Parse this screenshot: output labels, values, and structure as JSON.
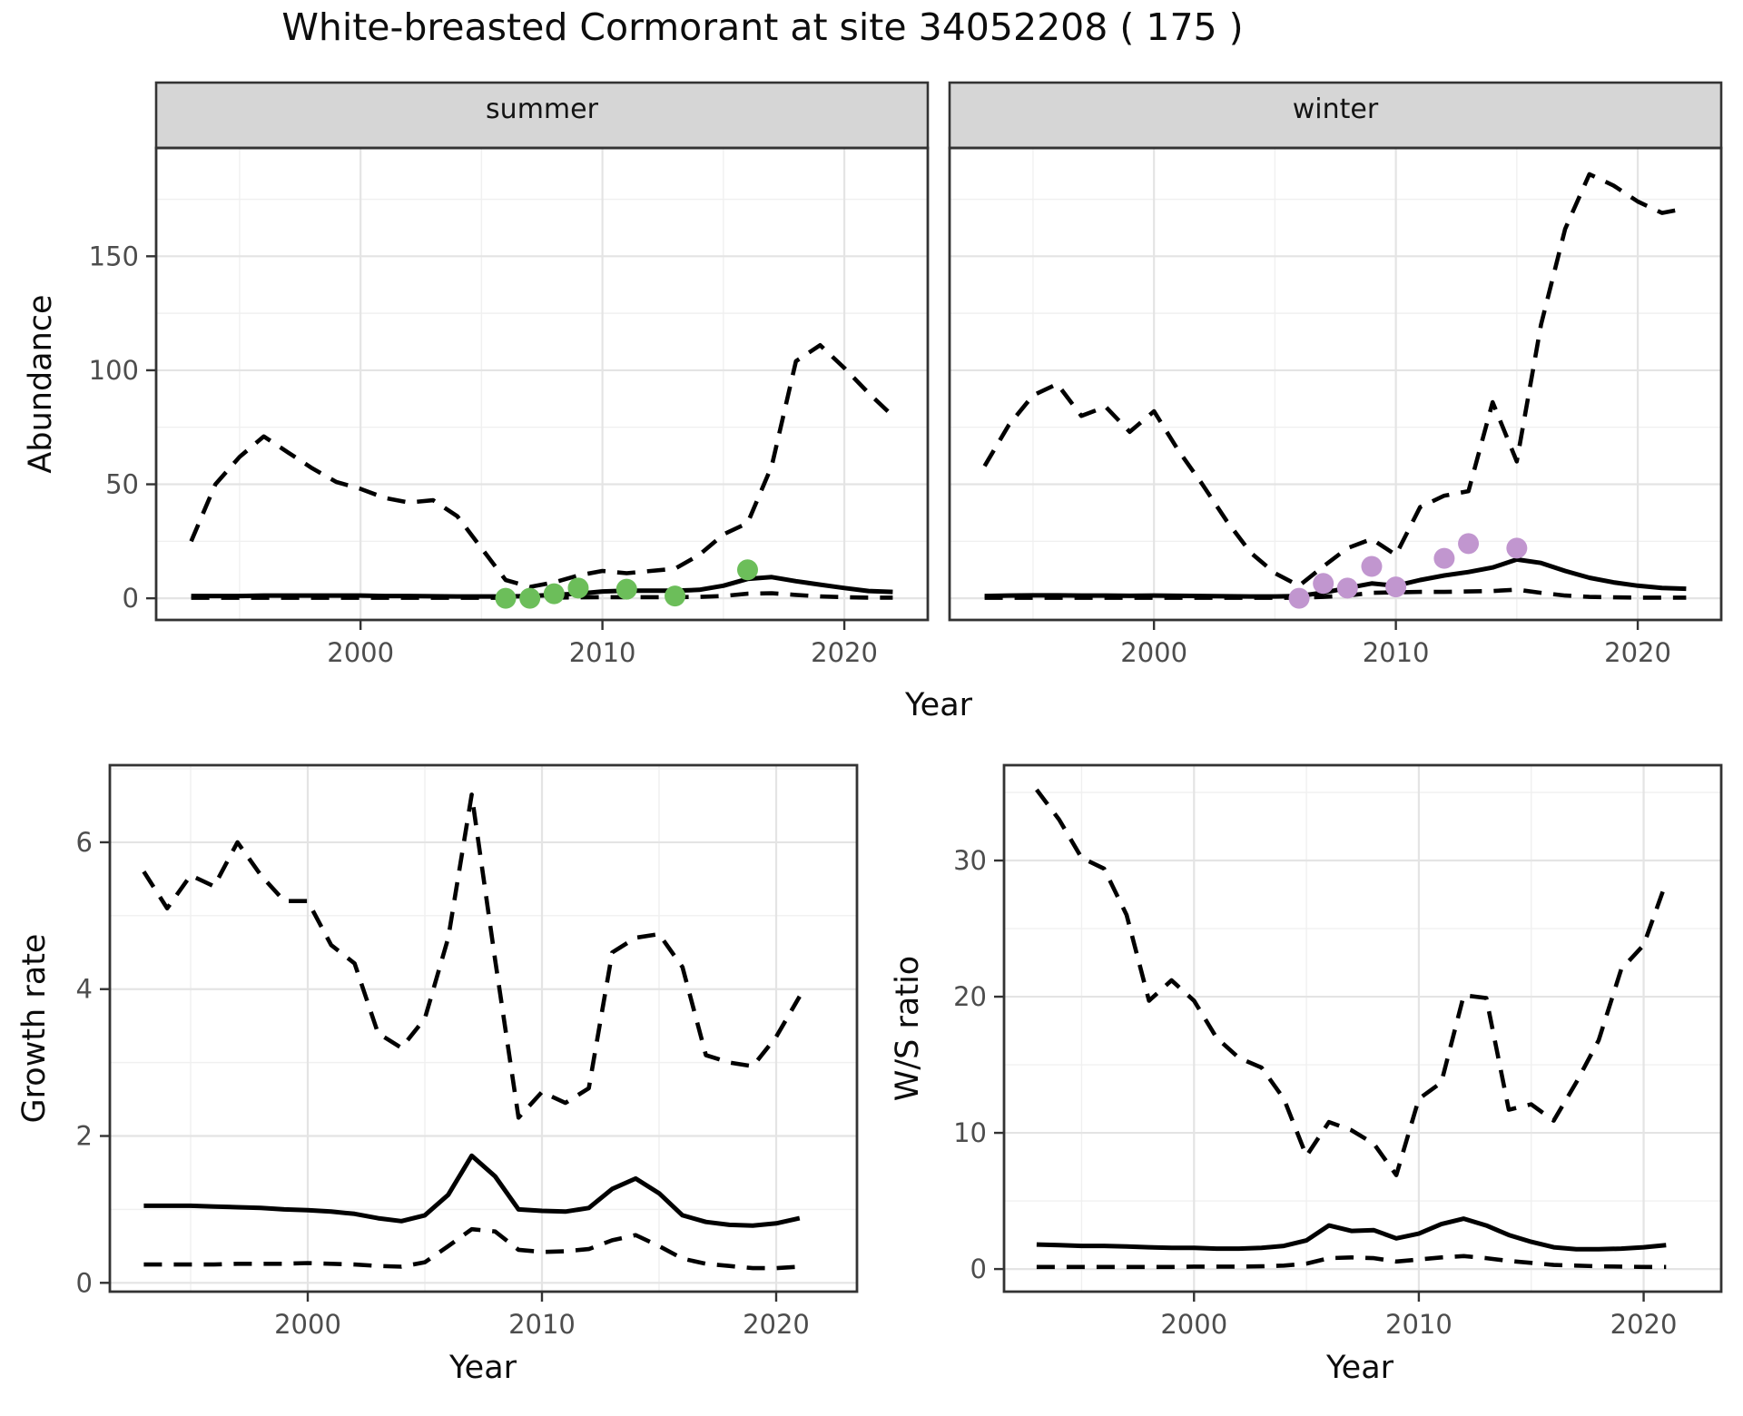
{
  "title": "White-breasted Cormorant at site 34052208 ( 175 )",
  "colors": {
    "line": "#000000",
    "summer_point": "#6cbe5a",
    "winter_point": "#c196cf",
    "grid_major": "#e4e4e4",
    "grid_minor": "#f0f0f0",
    "strip_bg": "#d6d6d6",
    "panel_border": "#333333",
    "tick_label": "#4d4d4d"
  },
  "chart_data": [
    {
      "id": "abundance",
      "type": "line",
      "x_label": "Year",
      "y_label": "Abundance",
      "x_ticks": [
        2000,
        2010,
        2020
      ],
      "x_minor_ticks": [
        1995,
        2005,
        2015
      ],
      "y_ticks": [
        0,
        50,
        100,
        150
      ],
      "y_minor_ticks": [
        25,
        75,
        125,
        175
      ],
      "xlim": [
        1991.55,
        2023.45
      ],
      "ylim": [
        -9.5,
        197.5
      ],
      "years": [
        1993,
        1994,
        1995,
        1996,
        1997,
        1998,
        1999,
        2000,
        2001,
        2002,
        2003,
        2004,
        2005,
        2006,
        2007,
        2008,
        2009,
        2010,
        2011,
        2012,
        2013,
        2014,
        2015,
        2016,
        2017,
        2018,
        2019,
        2020,
        2021,
        2022
      ],
      "facets": [
        {
          "label": "summer",
          "point_color": "#6cbe5a",
          "series": [
            {
              "name": "upper_95ci",
              "style": "dashed",
              "values": [
                25,
                50,
                62,
                71,
                64,
                57,
                51,
                48,
                44,
                42,
                43,
                36,
                22,
                8,
                5,
                7,
                10,
                12,
                11,
                12,
                13,
                19,
                28,
                33,
                58,
                104,
                111,
                101,
                90,
                80
              ]
            },
            {
              "name": "median_estimate",
              "style": "solid",
              "values": [
                1,
                1,
                1,
                1.2,
                1.2,
                1.2,
                1.2,
                1.2,
                1,
                1,
                0.9,
                0.8,
                0.8,
                0.8,
                1,
                1.5,
                2,
                3,
                3.3,
                3.3,
                3.3,
                3.7,
                5.5,
                8.5,
                9.3,
                7.5,
                6,
                4.5,
                3.2,
                2.8
              ]
            },
            {
              "name": "lower_95ci",
              "style": "dashed",
              "values": [
                0.2,
                0.2,
                0.2,
                0.2,
                0.2,
                0.2,
                0.2,
                0.2,
                0.2,
                0.2,
                0.2,
                0.2,
                0.2,
                0.2,
                0.2,
                0.3,
                0.4,
                0.5,
                0.5,
                0.5,
                0.5,
                0.6,
                1,
                2,
                2.2,
                1.5,
                0.8,
                0.5,
                0.3,
                0.3
              ]
            }
          ],
          "observed_points": [
            [
              2006,
              0
            ],
            [
              2007,
              0
            ],
            [
              2008,
              2
            ],
            [
              2009,
              4.5
            ],
            [
              2011,
              4
            ],
            [
              2013,
              1
            ],
            [
              2016,
              12.5
            ]
          ]
        },
        {
          "label": "winter",
          "point_color": "#c196cf",
          "series": [
            {
              "name": "upper_95ci",
              "style": "dashed",
              "values": [
                58,
                76,
                89,
                94,
                80,
                84,
                73,
                82,
                65,
                50,
                34,
                20,
                11,
                5.5,
                14,
                22,
                26,
                19,
                40,
                45,
                47,
                86,
                60,
                120,
                162,
                186,
                181,
                174,
                169,
                171
              ]
            },
            {
              "name": "median_estimate",
              "style": "solid",
              "values": [
                1,
                1.2,
                1.3,
                1.3,
                1.2,
                1.2,
                1.1,
                1.2,
                1.1,
                1,
                0.9,
                0.8,
                0.8,
                1,
                2.5,
                4.5,
                6.5,
                5.5,
                8,
                10,
                11.5,
                13.5,
                17,
                15.5,
                12,
                9,
                7,
                5.5,
                4.5,
                4.2
              ]
            },
            {
              "name": "lower_95ci",
              "style": "dashed",
              "values": [
                0.2,
                0.2,
                0.2,
                0.2,
                0.2,
                0.2,
                0.2,
                0.2,
                0.2,
                0.2,
                0.2,
                0.2,
                0.2,
                0.2,
                0.6,
                1.2,
                2.4,
                2.6,
                2.8,
                2.8,
                3,
                3.2,
                3.8,
                2.4,
                1.2,
                0.6,
                0.4,
                0.3,
                0.3,
                0.3
              ]
            }
          ],
          "observed_points": [
            [
              2006,
              0
            ],
            [
              2007,
              6.5
            ],
            [
              2008,
              4.5
            ],
            [
              2009,
              14
            ],
            [
              2010,
              5
            ],
            [
              2012,
              17.5
            ],
            [
              2013,
              24
            ],
            [
              2015,
              22
            ]
          ]
        }
      ]
    },
    {
      "id": "growth_rate",
      "type": "line",
      "x_label": "Year",
      "y_label": "Growth rate",
      "x_ticks": [
        2000,
        2010,
        2020
      ],
      "x_minor_ticks": [
        1995,
        2005,
        2015
      ],
      "y_ticks": [
        0,
        2,
        4,
        6
      ],
      "y_minor_ticks": [
        1,
        3,
        5,
        7
      ],
      "xlim": [
        1991.55,
        2023.45
      ],
      "ylim": [
        -0.12,
        7.05
      ],
      "years": [
        1993,
        1994,
        1995,
        1996,
        1997,
        1998,
        1999,
        2000,
        2001,
        2002,
        2003,
        2004,
        2005,
        2006,
        2007,
        2008,
        2009,
        2010,
        2011,
        2012,
        2013,
        2014,
        2015,
        2016,
        2017,
        2018,
        2019,
        2020,
        2021
      ],
      "series": [
        {
          "name": "upper_95ci",
          "style": "dashed",
          "values": [
            5.6,
            5.1,
            5.55,
            5.4,
            6.0,
            5.55,
            5.2,
            5.2,
            4.6,
            4.35,
            3.4,
            3.2,
            3.6,
            4.7,
            6.65,
            4.4,
            2.25,
            2.6,
            2.45,
            2.65,
            4.5,
            4.7,
            4.75,
            4.3,
            3.1,
            3.0,
            2.95,
            3.35,
            3.9
          ]
        },
        {
          "name": "median_estimate",
          "style": "solid",
          "values": [
            1.05,
            1.05,
            1.05,
            1.04,
            1.03,
            1.02,
            1.0,
            0.99,
            0.97,
            0.94,
            0.88,
            0.84,
            0.92,
            1.2,
            1.73,
            1.45,
            1.0,
            0.98,
            0.97,
            1.02,
            1.28,
            1.42,
            1.22,
            0.92,
            0.83,
            0.79,
            0.78,
            0.81,
            0.88
          ]
        },
        {
          "name": "lower_95ci",
          "style": "dashed",
          "values": [
            0.25,
            0.25,
            0.25,
            0.25,
            0.26,
            0.26,
            0.26,
            0.27,
            0.26,
            0.25,
            0.23,
            0.22,
            0.28,
            0.5,
            0.73,
            0.7,
            0.45,
            0.42,
            0.43,
            0.46,
            0.58,
            0.65,
            0.5,
            0.33,
            0.26,
            0.23,
            0.2,
            0.2,
            0.22
          ]
        }
      ]
    },
    {
      "id": "ws_ratio",
      "type": "line",
      "x_label": "Year",
      "y_label": "W/S ratio",
      "x_ticks": [
        2000,
        2010,
        2020
      ],
      "x_minor_ticks": [
        1995,
        2005,
        2015
      ],
      "y_ticks": [
        0,
        10,
        20,
        30
      ],
      "y_minor_ticks": [
        5,
        15,
        25,
        35
      ],
      "xlim": [
        1991.55,
        2023.45
      ],
      "ylim": [
        -1.66,
        37.0
      ],
      "years": [
        1993,
        1994,
        1995,
        1996,
        1997,
        1998,
        1999,
        2000,
        2001,
        2002,
        2003,
        2004,
        2005,
        2006,
        2007,
        2008,
        2009,
        2010,
        2011,
        2012,
        2013,
        2014,
        2015,
        2016,
        2017,
        2018,
        2019,
        2020,
        2021
      ],
      "series": [
        {
          "name": "upper_95ci",
          "style": "dashed",
          "values": [
            35.2,
            33,
            30.2,
            29.4,
            26,
            19.7,
            21.2,
            19.7,
            17,
            15.5,
            14.8,
            12.5,
            8.3,
            10.8,
            10.2,
            9.2,
            6.9,
            12.5,
            13.7,
            20.1,
            19.9,
            11.7,
            12.1,
            10.9,
            13.7,
            16.8,
            22,
            23.8,
            28.4
          ]
        },
        {
          "name": "median_estimate",
          "style": "solid",
          "values": [
            1.8,
            1.75,
            1.7,
            1.7,
            1.65,
            1.6,
            1.55,
            1.55,
            1.5,
            1.5,
            1.55,
            1.7,
            2.1,
            3.2,
            2.8,
            2.85,
            2.25,
            2.6,
            3.3,
            3.7,
            3.2,
            2.5,
            2.0,
            1.6,
            1.45,
            1.45,
            1.5,
            1.6,
            1.75
          ]
        },
        {
          "name": "lower_95ci",
          "style": "dashed",
          "values": [
            0.15,
            0.15,
            0.15,
            0.15,
            0.15,
            0.15,
            0.15,
            0.18,
            0.18,
            0.18,
            0.2,
            0.25,
            0.4,
            0.8,
            0.85,
            0.8,
            0.55,
            0.7,
            0.85,
            0.95,
            0.8,
            0.6,
            0.45,
            0.3,
            0.25,
            0.2,
            0.18,
            0.15,
            0.15
          ]
        }
      ]
    }
  ]
}
